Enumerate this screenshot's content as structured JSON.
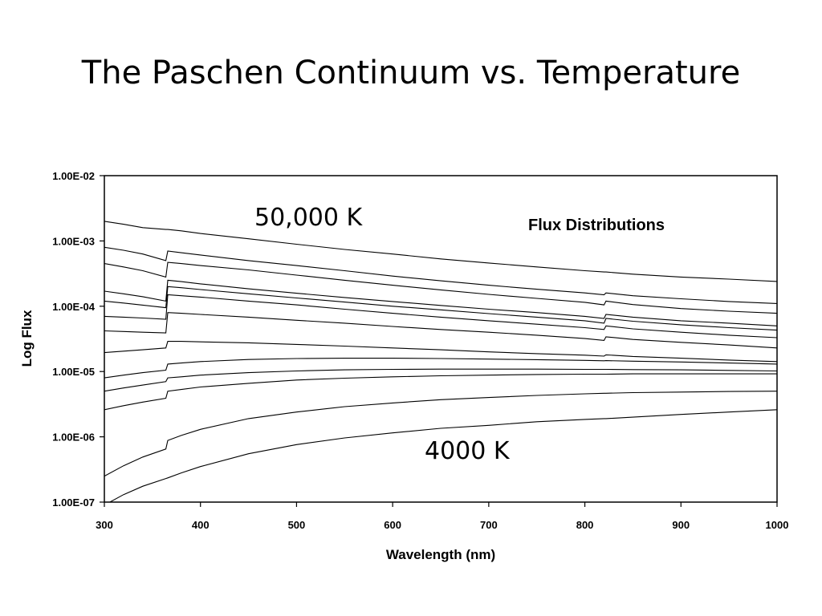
{
  "slide": {
    "title": "The Paschen Continuum vs. Temperature"
  },
  "chart_data": {
    "type": "line",
    "title": "",
    "xlabel": "Wavelength (nm)",
    "ylabel": "Log Flux",
    "xlim": [
      300,
      1000
    ],
    "ylim": [
      1e-07,
      0.01
    ],
    "yscale": "log",
    "grid": false,
    "x_ticks": [
      "300",
      "400",
      "500",
      "600",
      "700",
      "800",
      "900",
      "1000"
    ],
    "y_ticks": [
      "1.00E-07",
      "1.00E-06",
      "1.00E-05",
      "1.00E-04",
      "1.00E-03",
      "1.00E-02"
    ],
    "annotations": [
      {
        "text": "50,000 K"
      },
      {
        "text": "Flux Distributions"
      },
      {
        "text": "4000 K"
      }
    ],
    "x": [
      300,
      320,
      340,
      364,
      366,
      380,
      400,
      450,
      500,
      550,
      600,
      650,
      700,
      750,
      800,
      820,
      822,
      850,
      900,
      950,
      1000
    ],
    "series": [
      {
        "values": [
          0.002,
          0.0018,
          0.0016,
          0.0015,
          0.0015,
          0.00143,
          0.0013,
          0.00108,
          0.00089,
          0.00074,
          0.00063,
          0.00053,
          0.00046,
          0.0004,
          0.00035,
          0.000335,
          0.000335,
          0.00031,
          0.00028,
          0.00026,
          0.00024
        ]
      },
      {
        "values": [
          0.0008,
          0.00072,
          0.00063,
          0.0005,
          0.0007,
          0.00066,
          0.00061,
          0.0005,
          0.00042,
          0.00035,
          0.00029,
          0.000245,
          0.00021,
          0.000182,
          0.00016,
          0.00015,
          0.00016,
          0.000145,
          0.00013,
          0.000118,
          0.00011
        ]
      },
      {
        "values": [
          0.00045,
          0.0004,
          0.00035,
          0.00028,
          0.00047,
          0.00045,
          0.00042,
          0.00036,
          0.0003,
          0.00025,
          0.00021,
          0.000178,
          0.000152,
          0.000132,
          0.000115,
          0.000105,
          0.00012,
          0.000106,
          9.2e-05,
          8.4e-05,
          7.8e-05
        ]
      },
      {
        "values": [
          0.00017,
          0.000155,
          0.00014,
          0.00012,
          0.00025,
          0.000238,
          0.00022,
          0.000185,
          0.000158,
          0.000136,
          0.000118,
          0.000103,
          9e-05,
          8e-05,
          7e-05,
          6.5e-05,
          7.5e-05,
          6.8e-05,
          6e-05,
          5.5e-05,
          5e-05
        ]
      },
      {
        "values": [
          0.00012,
          0.000112,
          0.000104,
          9.5e-05,
          0.0002,
          0.000192,
          0.00018,
          0.000155,
          0.000134,
          0.000116,
          0.0001,
          8.8e-05,
          7.7e-05,
          6.8e-05,
          6e-05,
          5.5e-05,
          6.5e-05,
          5.9e-05,
          5.2e-05,
          4.7e-05,
          4.3e-05
        ]
      },
      {
        "values": [
          7e-05,
          6.8e-05,
          6.6e-05,
          6.3e-05,
          0.00015,
          0.000145,
          0.000138,
          0.00012,
          0.000105,
          9e-05,
          7.8e-05,
          6.8e-05,
          6e-05,
          5.3e-05,
          4.7e-05,
          4.4e-05,
          5e-05,
          4.5e-05,
          4e-05,
          3.6e-05,
          3.3e-05
        ]
      },
      {
        "values": [
          4.2e-05,
          4.1e-05,
          4e-05,
          3.9e-05,
          8e-05,
          7.8e-05,
          7.5e-05,
          6.8e-05,
          6.1e-05,
          5.5e-05,
          4.9e-05,
          4.4e-05,
          4e-05,
          3.6e-05,
          3.2e-05,
          3e-05,
          3.4e-05,
          3.1e-05,
          2.8e-05,
          2.55e-05,
          2.3e-05
        ]
      },
      {
        "values": [
          1.95e-05,
          2.05e-05,
          2.15e-05,
          2.3e-05,
          2.9e-05,
          2.9e-05,
          2.85e-05,
          2.75e-05,
          2.6e-05,
          2.45e-05,
          2.3e-05,
          2.15e-05,
          2e-05,
          1.88e-05,
          1.78e-05,
          1.72e-05,
          1.8e-05,
          1.7e-05,
          1.6e-05,
          1.5e-05,
          1.42e-05
        ]
      },
      {
        "values": [
          8e-06,
          8.8e-06,
          9.6e-06,
          1.05e-05,
          1.3e-05,
          1.35e-05,
          1.42e-05,
          1.53e-05,
          1.58e-05,
          1.6e-05,
          1.6e-05,
          1.58e-05,
          1.55e-05,
          1.52e-05,
          1.48e-05,
          1.46e-05,
          1.47e-05,
          1.44e-05,
          1.4e-05,
          1.35e-05,
          1.3e-05
        ]
      },
      {
        "values": [
          5e-06,
          5.6e-06,
          6.2e-06,
          7e-06,
          8e-06,
          8.3e-06,
          8.8e-06,
          9.6e-06,
          1.02e-05,
          1.06e-05,
          1.08e-05,
          1.09e-05,
          1.09e-05,
          1.09e-05,
          1.08e-05,
          1.08e-05,
          1.08e-05,
          1.07e-05,
          1.06e-05,
          1.04e-05,
          1.02e-05
        ]
      },
      {
        "values": [
          2.6e-06,
          3e-06,
          3.4e-06,
          3.9e-06,
          5e-06,
          5.3e-06,
          5.8e-06,
          6.6e-06,
          7.4e-06,
          7.9e-06,
          8.3e-06,
          8.6e-06,
          8.8e-06,
          9e-06,
          9.1e-06,
          9.1e-06,
          9.1e-06,
          9.2e-06,
          9.2e-06,
          9.2e-06,
          9.2e-06
        ]
      },
      {
        "values": [
          2.5e-07,
          3.6e-07,
          4.9e-07,
          6.5e-07,
          8.8e-07,
          1.05e-06,
          1.3e-06,
          1.9e-06,
          2.4e-06,
          2.9e-06,
          3.3e-06,
          3.7e-06,
          4e-06,
          4.3e-06,
          4.55e-06,
          4.65e-06,
          4.65e-06,
          4.75e-06,
          4.85e-06,
          4.95e-06,
          5e-06
        ]
      },
      {
        "values": [
          9e-08,
          1.3e-07,
          1.75e-07,
          2.3e-07,
          2.35e-07,
          2.8e-07,
          3.5e-07,
          5.5e-07,
          7.6e-07,
          9.6e-07,
          1.15e-06,
          1.35e-06,
          1.5e-06,
          1.7e-06,
          1.85e-06,
          1.9e-06,
          1.9e-06,
          2e-06,
          2.2e-06,
          2.4e-06,
          2.6e-06
        ]
      }
    ]
  }
}
